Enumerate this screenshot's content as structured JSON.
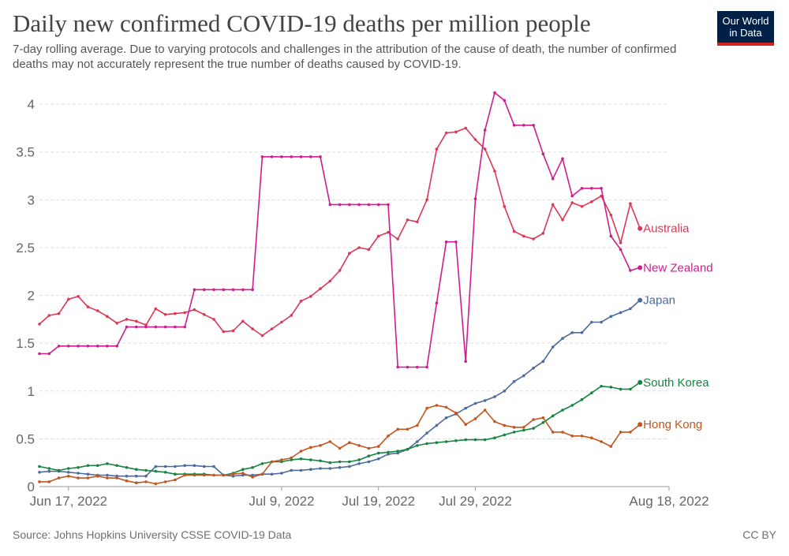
{
  "header": {
    "title": "Daily new confirmed COVID-19 deaths per million people",
    "subtitle": "7-day rolling average. Due to varying protocols and challenges in the attribution of the cause of death, the number of confirmed deaths may not accurately represent the true number of deaths caused by COVID-19.",
    "logo_line1": "Our World",
    "logo_line2": "in Data"
  },
  "footer": {
    "source": "Source: Johns Hopkins University CSSE COVID-19 Data",
    "license": "CC BY"
  },
  "colors": {
    "australia": "#dc3855",
    "new_zealand": "#d01d8e",
    "japan": "#4c6a9c",
    "south_korea": "#178440",
    "hong_kong": "#c2561f",
    "grid": "#dddddd",
    "axis_text": "#666666"
  },
  "chart_data": {
    "type": "line",
    "x_start": "2022-06-14",
    "x_end": "2022-08-18",
    "x_ticks": [
      {
        "date": "2022-06-17",
        "label": "Jun 17, 2022"
      },
      {
        "date": "2022-07-09",
        "label": "Jul 9, 2022"
      },
      {
        "date": "2022-07-19",
        "label": "Jul 19, 2022"
      },
      {
        "date": "2022-07-29",
        "label": "Jul 29, 2022"
      },
      {
        "date": "2022-08-18",
        "label": "Aug 18, 2022"
      }
    ],
    "y_ticks": [
      0,
      0.5,
      1,
      1.5,
      2,
      2.5,
      3,
      3.5,
      4
    ],
    "y_tick_labels": [
      "0",
      "0.5",
      "1",
      "1.5",
      "2",
      "2.5",
      "3",
      "3.5",
      "4"
    ],
    "ylim": [
      0,
      4.1
    ],
    "grid": true,
    "legend": "right end labels",
    "series": [
      {
        "name": "Australia",
        "color_key": "australia",
        "values": [
          1.7,
          1.79,
          1.81,
          1.96,
          1.99,
          1.88,
          1.84,
          1.78,
          1.71,
          1.75,
          1.73,
          1.69,
          1.86,
          1.8,
          1.81,
          1.82,
          1.85,
          1.8,
          1.75,
          1.62,
          1.63,
          1.73,
          1.65,
          1.58,
          1.65,
          1.72,
          1.79,
          1.94,
          1.99,
          2.07,
          2.15,
          2.26,
          2.44,
          2.5,
          2.48,
          2.62,
          2.66,
          2.59,
          2.79,
          2.77,
          3.0,
          3.53,
          3.7,
          3.71,
          3.75,
          3.63,
          3.53,
          3.3,
          2.93,
          2.67,
          2.62,
          2.59,
          2.65,
          2.95,
          2.79,
          2.97,
          2.93,
          2.98,
          3.04,
          2.84,
          2.55,
          2.96,
          2.7
        ]
      },
      {
        "name": "New Zealand",
        "color_key": "new_zealand",
        "values": [
          1.39,
          1.39,
          1.47,
          1.47,
          1.47,
          1.47,
          1.47,
          1.47,
          1.47,
          1.67,
          1.67,
          1.67,
          1.67,
          1.67,
          1.67,
          1.67,
          2.06,
          2.06,
          2.06,
          2.06,
          2.06,
          2.06,
          2.06,
          3.45,
          3.45,
          3.45,
          3.45,
          3.45,
          3.45,
          3.45,
          2.95,
          2.95,
          2.95,
          2.95,
          2.95,
          2.95,
          2.95,
          1.25,
          1.25,
          1.25,
          1.25,
          1.92,
          2.56,
          2.56,
          1.31,
          3.01,
          3.73,
          4.12,
          4.04,
          3.78,
          3.78,
          3.78,
          3.48,
          3.22,
          3.43,
          3.04,
          3.12,
          3.12,
          3.12,
          2.62,
          2.48,
          2.26,
          2.29
        ]
      },
      {
        "name": "Japan",
        "color_key": "japan",
        "values": [
          0.15,
          0.16,
          0.16,
          0.15,
          0.14,
          0.13,
          0.12,
          0.12,
          0.11,
          0.11,
          0.11,
          0.11,
          0.21,
          0.21,
          0.21,
          0.22,
          0.22,
          0.21,
          0.21,
          0.12,
          0.11,
          0.12,
          0.12,
          0.13,
          0.13,
          0.14,
          0.17,
          0.17,
          0.18,
          0.19,
          0.19,
          0.2,
          0.21,
          0.24,
          0.26,
          0.29,
          0.34,
          0.35,
          0.39,
          0.47,
          0.56,
          0.64,
          0.72,
          0.76,
          0.82,
          0.87,
          0.9,
          0.94,
          1.0,
          1.1,
          1.16,
          1.24,
          1.31,
          1.46,
          1.55,
          1.61,
          1.61,
          1.72,
          1.72,
          1.78,
          1.82,
          1.86,
          1.95
        ]
      },
      {
        "name": "South Korea",
        "color_key": "south_korea",
        "values": [
          0.21,
          0.19,
          0.17,
          0.19,
          0.2,
          0.22,
          0.22,
          0.24,
          0.22,
          0.2,
          0.18,
          0.17,
          0.16,
          0.15,
          0.13,
          0.13,
          0.13,
          0.13,
          0.12,
          0.12,
          0.14,
          0.18,
          0.2,
          0.24,
          0.26,
          0.26,
          0.28,
          0.29,
          0.28,
          0.27,
          0.25,
          0.26,
          0.26,
          0.28,
          0.32,
          0.35,
          0.36,
          0.37,
          0.39,
          0.43,
          0.45,
          0.46,
          0.47,
          0.48,
          0.49,
          0.49,
          0.49,
          0.51,
          0.54,
          0.57,
          0.59,
          0.61,
          0.67,
          0.74,
          0.8,
          0.85,
          0.91,
          0.98,
          1.05,
          1.04,
          1.02,
          1.02,
          1.09
        ]
      },
      {
        "name": "Hong Kong",
        "color_key": "hong_kong",
        "values": [
          0.05,
          0.05,
          0.09,
          0.11,
          0.09,
          0.09,
          0.11,
          0.09,
          0.09,
          0.06,
          0.04,
          0.05,
          0.03,
          0.05,
          0.07,
          0.12,
          0.12,
          0.12,
          0.12,
          0.12,
          0.13,
          0.14,
          0.1,
          0.13,
          0.26,
          0.28,
          0.3,
          0.37,
          0.41,
          0.43,
          0.47,
          0.4,
          0.46,
          0.43,
          0.4,
          0.42,
          0.53,
          0.6,
          0.6,
          0.64,
          0.82,
          0.85,
          0.83,
          0.77,
          0.65,
          0.71,
          0.8,
          0.68,
          0.64,
          0.62,
          0.62,
          0.7,
          0.72,
          0.57,
          0.57,
          0.53,
          0.53,
          0.51,
          0.47,
          0.42,
          0.57,
          0.57,
          0.65
        ]
      }
    ]
  }
}
